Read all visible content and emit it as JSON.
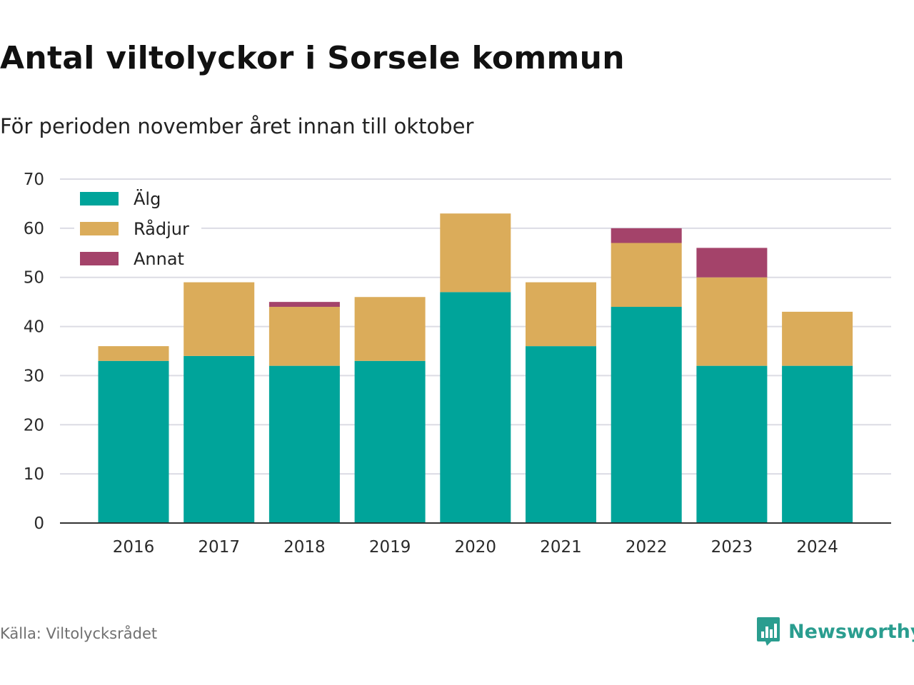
{
  "title": "Antal viltolyckor i Sorsele kommun",
  "subtitle": "För perioden november året innan till oktober",
  "source": "Källa: Viltolycksrådet",
  "brand": {
    "name": "Newsworthy",
    "icon": "bar-chart-speech-bubble-icon",
    "color": "#2a9d8f"
  },
  "colors": {
    "Älg": "#00a49a",
    "Rådjur": "#dbac5a",
    "Annat": "#a4436a"
  },
  "chart_data": {
    "type": "bar",
    "stacked": true,
    "categories": [
      "2016",
      "2017",
      "2018",
      "2019",
      "2020",
      "2021",
      "2022",
      "2023",
      "2024"
    ],
    "series": [
      {
        "name": "Älg",
        "values": [
          33,
          34,
          32,
          33,
          47,
          36,
          44,
          32,
          32
        ]
      },
      {
        "name": "Rådjur",
        "values": [
          3,
          15,
          12,
          13,
          16,
          13,
          13,
          18,
          11
        ]
      },
      {
        "name": "Annat",
        "values": [
          0,
          0,
          1,
          0,
          0,
          0,
          3,
          6,
          0
        ]
      }
    ],
    "ylim": [
      0,
      70
    ],
    "yticks": [
      "0",
      "10",
      "20",
      "30",
      "40",
      "50",
      "60",
      "70"
    ],
    "grid": true,
    "legend_position": "top-left",
    "xlabel": "",
    "ylabel": ""
  }
}
